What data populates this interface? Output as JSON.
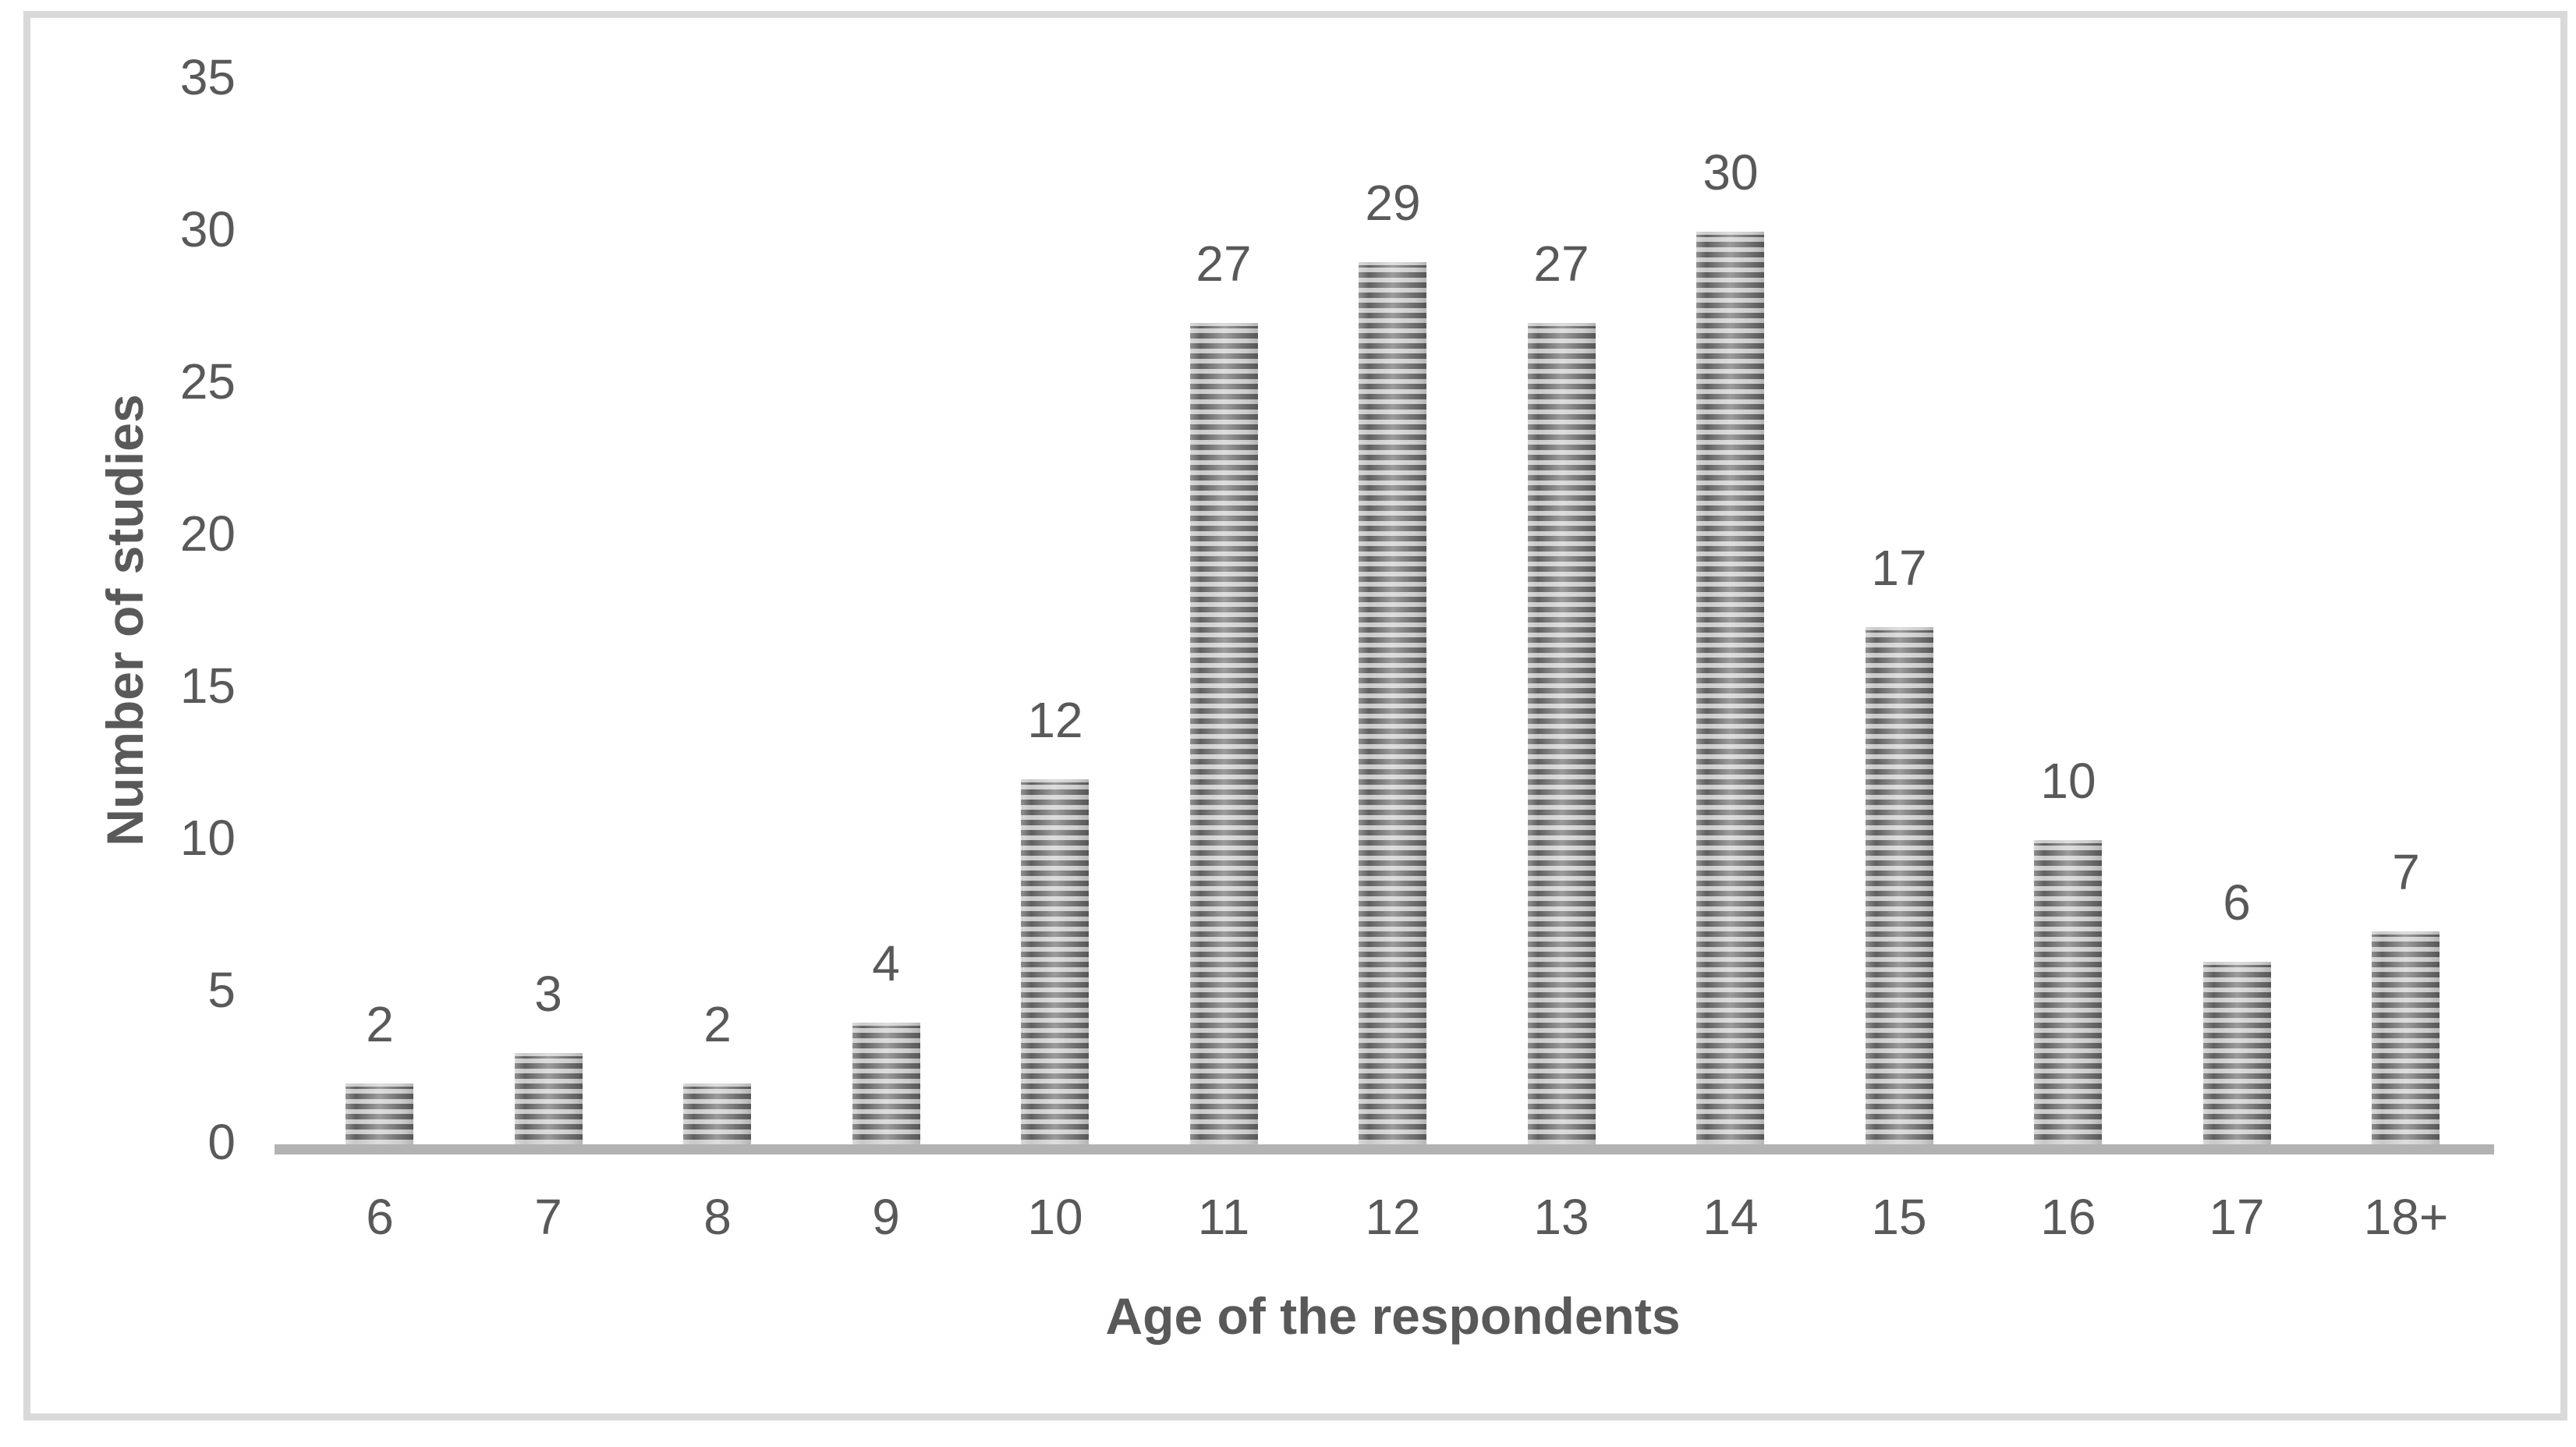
{
  "chart_data": {
    "type": "bar",
    "title": "",
    "xlabel": "Age of the respondents",
    "ylabel": "Number of studies",
    "categories": [
      "6",
      "7",
      "8",
      "9",
      "10",
      "11",
      "12",
      "13",
      "14",
      "15",
      "16",
      "17",
      "18+"
    ],
    "values": [
      2,
      3,
      2,
      4,
      12,
      27,
      29,
      27,
      30,
      17,
      10,
      6,
      7
    ],
    "data_labels": [
      "2",
      "3",
      "2",
      "4",
      "12",
      "27",
      "29",
      "27",
      "30",
      "17",
      "10",
      "6",
      "7"
    ],
    "yticks": [
      0,
      5,
      10,
      15,
      20,
      25,
      30,
      35
    ],
    "ylim": [
      0,
      35
    ],
    "grid": false,
    "legend": null,
    "bar_fill_pattern": "horizontal-stripes",
    "colors": {
      "stripe_dark": "#606060",
      "stripe_light": "#c9c9c9",
      "axis_text": "#595959",
      "baseline": "#b2b2b2",
      "frame_border": "#d9d9d9",
      "background": "#ffffff"
    }
  }
}
